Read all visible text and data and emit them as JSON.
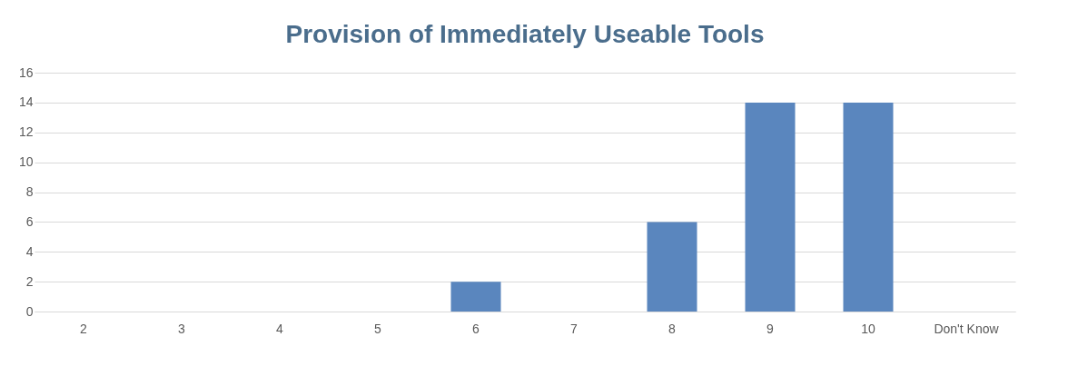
{
  "chart_data": {
    "type": "bar",
    "title": "Provision of Immediately Useable Tools",
    "categories": [
      "2",
      "3",
      "4",
      "5",
      "6",
      "7",
      "8",
      "9",
      "10",
      "Don't Know"
    ],
    "values": [
      0,
      0,
      0,
      0,
      2,
      0,
      6,
      14,
      14,
      0
    ],
    "color": "#5a86be",
    "ylim": [
      0,
      16
    ],
    "yticks": [
      0,
      2,
      4,
      6,
      8,
      10,
      12,
      14,
      16
    ],
    "grid": "y"
  }
}
